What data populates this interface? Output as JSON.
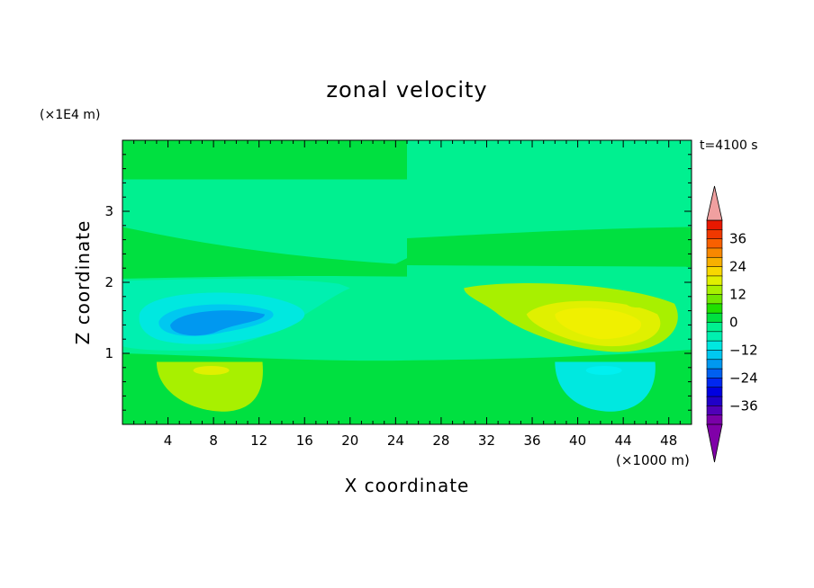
{
  "chart_data": {
    "type": "heatmap",
    "title": "zonal velocity",
    "xlabel": "X coordinate",
    "ylabel": "Z coordinate",
    "x_unit_label": "(×1000 m)",
    "y_unit_label": "(×1E4 m)",
    "time_label": "t=4100 s",
    "xlim": [
      0,
      50
    ],
    "ylim": [
      0,
      4
    ],
    "x_ticks": [
      "4",
      "8",
      "12",
      "16",
      "20",
      "24",
      "28",
      "32",
      "36",
      "40",
      "44",
      "48"
    ],
    "y_ticks": [
      "1",
      "2",
      "3"
    ],
    "colorbar": {
      "tick_labels": [
        "36",
        "24",
        "12",
        "0",
        "-12",
        "-24",
        "-36"
      ],
      "tick_values": [
        36,
        24,
        12,
        0,
        -12,
        -24,
        -36
      ],
      "colors": [
        "#7a00a8",
        "#5000b8",
        "#2000c8",
        "#0000e0",
        "#0028f0",
        "#0060f0",
        "#0098f0",
        "#00c8f0",
        "#00e8e0",
        "#00f0b0",
        "#00f090",
        "#00e040",
        "#20e000",
        "#70e800",
        "#a8f000",
        "#e0f000",
        "#f8d800",
        "#f8b000",
        "#f88800",
        "#f86000",
        "#f03800",
        "#e81800",
        "#f0a0a0"
      ],
      "min_arrow_color": "#8000a8",
      "max_arrow_color": "#f0a0a0"
    },
    "levels": [
      {
        "name": "background",
        "value": 0,
        "color": "#00e040"
      },
      {
        "name": "bands_right",
        "value": -3,
        "color": "#00f090"
      },
      {
        "name": "upper_left_cyan_region",
        "value": -6,
        "color": "#00f0b0"
      },
      {
        "name": "upper_left_cyan_mid",
        "value": -9,
        "color": "#00e8e0"
      },
      {
        "name": "upper_left_core",
        "value": -15,
        "color": "#0098f0"
      },
      {
        "name": "upper_right_yellowgreen",
        "value": 6,
        "color": "#a8f000"
      },
      {
        "name": "upper_right_yellow_core",
        "value": 12,
        "color": "#f0f000"
      },
      {
        "name": "lower_left_lightgreen",
        "value": 6,
        "color": "#a8f000"
      },
      {
        "name": "lower_right_cyan",
        "value": -9,
        "color": "#00e8e0"
      }
    ]
  }
}
